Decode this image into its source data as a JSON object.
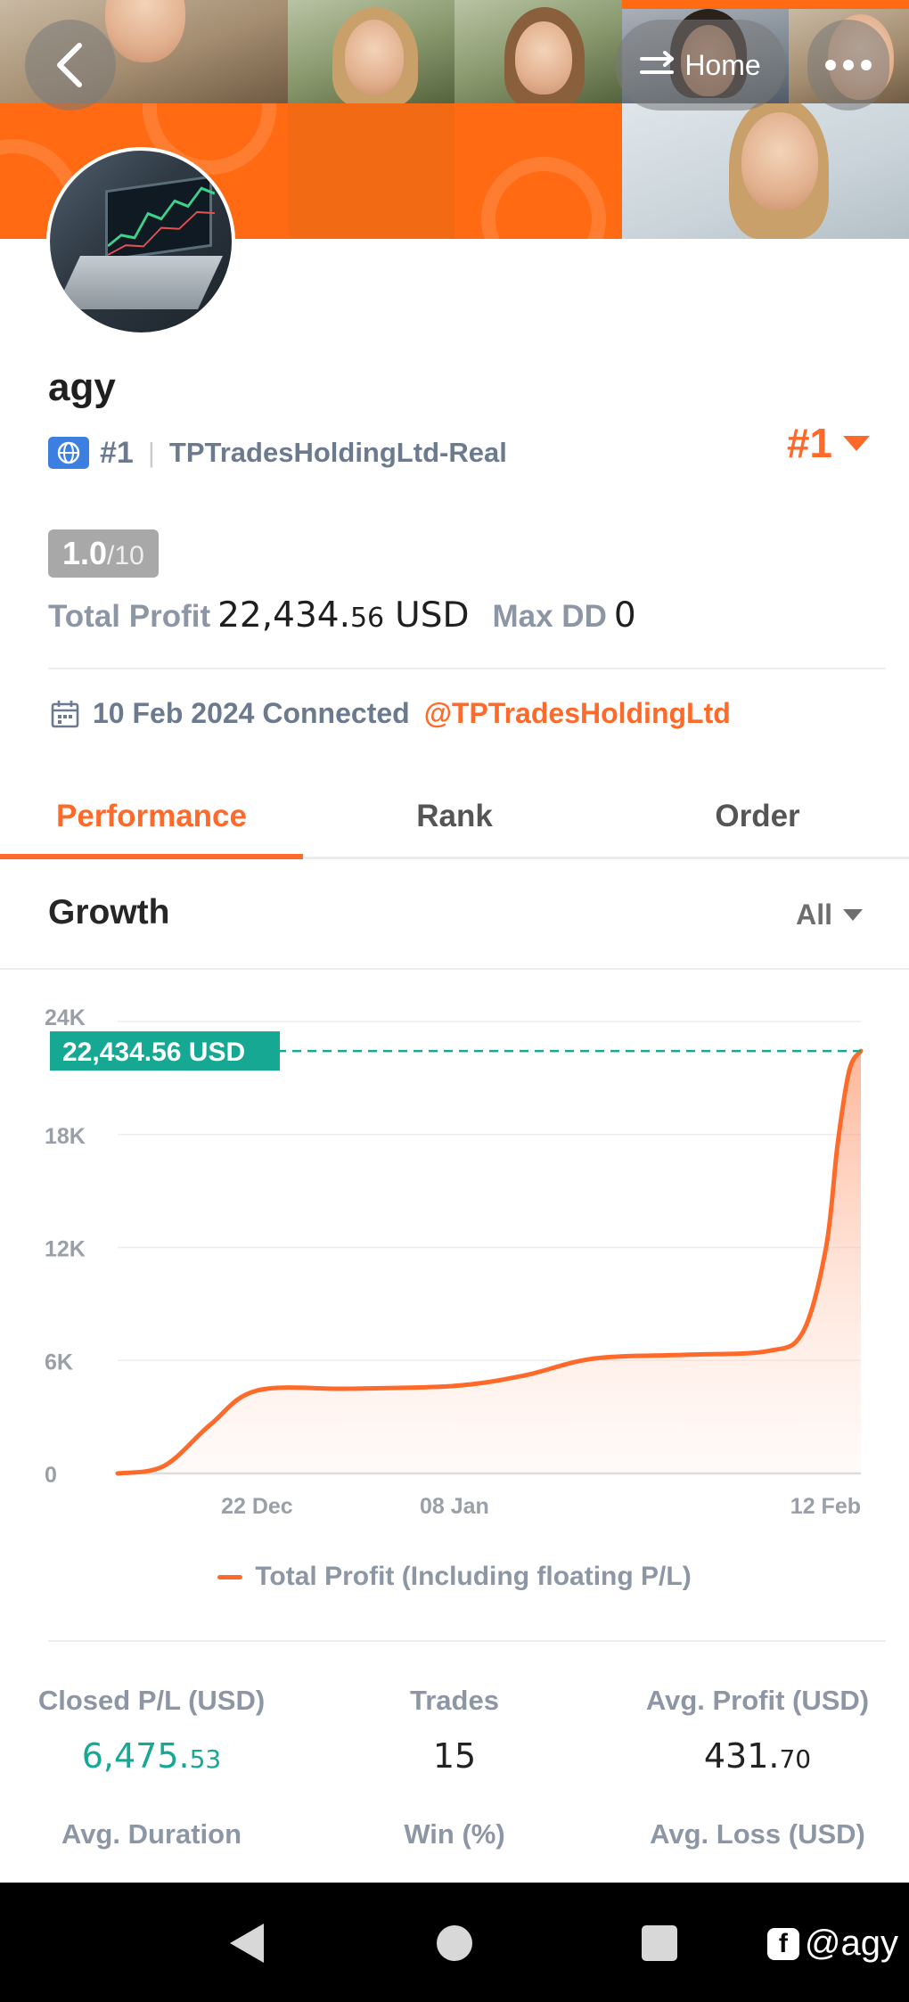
{
  "header": {
    "home_label": "Home"
  },
  "profile": {
    "name": "agy",
    "rank": "#1",
    "account": "TPTradesHoldingLtd-Real",
    "rank_badge": "#1",
    "score_main": "1.0",
    "score_max": "/10",
    "total_profit_label": "Total Profit",
    "total_profit_int": "22,434.",
    "total_profit_dec": "56",
    "total_profit_unit": "USD",
    "max_dd_label": "Max DD",
    "max_dd_value": "0",
    "connected_text": "10 Feb 2024 Connected",
    "connected_handle": "@TPTradesHoldingLtd"
  },
  "tabs": [
    {
      "label": "Performance",
      "active": true
    },
    {
      "label": "Rank",
      "active": false
    },
    {
      "label": "Order",
      "active": false
    }
  ],
  "growth": {
    "title": "Growth",
    "filter": "All"
  },
  "chart_data": {
    "type": "area",
    "title": "",
    "xlabel": "",
    "ylabel": "",
    "ylim": [
      0,
      24000
    ],
    "y_ticks": [
      "24K",
      "18K",
      "12K",
      "6K",
      "0"
    ],
    "x_tick_labels": [
      "22 Dec",
      "08 Jan",
      "12 Feb"
    ],
    "current_value_label": "22,434.56 USD",
    "legend": "top-none",
    "grid": true,
    "series": [
      {
        "name": "Total Profit (Including floating P/L)",
        "color": "#ff6a2a",
        "points": [
          {
            "x": "2023-12-10",
            "y": 0
          },
          {
            "x": "2023-12-14",
            "y": 400
          },
          {
            "x": "2023-12-18",
            "y": 2600
          },
          {
            "x": "2023-12-22",
            "y": 4400
          },
          {
            "x": "2023-12-30",
            "y": 4500
          },
          {
            "x": "2024-01-08",
            "y": 4650
          },
          {
            "x": "2024-01-14",
            "y": 5200
          },
          {
            "x": "2024-01-20",
            "y": 6100
          },
          {
            "x": "2024-01-28",
            "y": 6300
          },
          {
            "x": "2024-02-04",
            "y": 6500
          },
          {
            "x": "2024-02-07",
            "y": 7500
          },
          {
            "x": "2024-02-09",
            "y": 12000
          },
          {
            "x": "2024-02-10",
            "y": 17500
          },
          {
            "x": "2024-02-11",
            "y": 21400
          },
          {
            "x": "2024-02-12",
            "y": 22434.56
          }
        ]
      }
    ]
  },
  "stats": [
    {
      "label": "Closed P/L (USD)",
      "int": "6,475.",
      "dec": "53",
      "green": true
    },
    {
      "label": "Trades",
      "int": "15",
      "dec": "",
      "green": false
    },
    {
      "label": "Avg. Profit (USD)",
      "int": "431.",
      "dec": "70",
      "green": false
    },
    {
      "label": "Avg. Duration",
      "int": "",
      "dec": "",
      "green": false
    },
    {
      "label": "Win (%)",
      "int": "",
      "dec": "",
      "green": false
    },
    {
      "label": "Avg. Loss (USD)",
      "int": "",
      "dec": "",
      "green": false
    }
  ],
  "watermark": {
    "handle": "@agy"
  }
}
